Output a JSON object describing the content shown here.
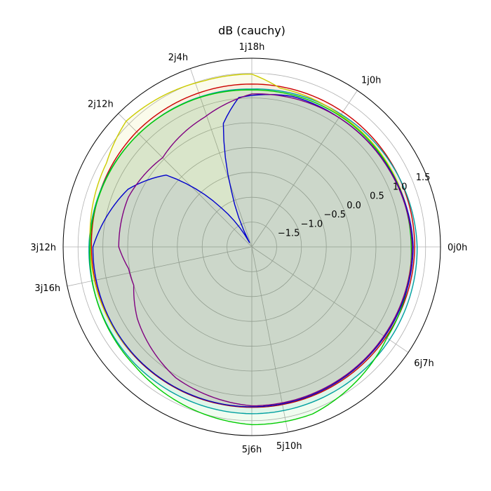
{
  "chart_data": {
    "type": "polar-line",
    "title": "dB (cauchy)",
    "theta_ticks": [
      {
        "label": "0j0h",
        "deg": 0
      },
      {
        "label": "1j0h",
        "deg": 56
      },
      {
        "label": "1j18h",
        "deg": 90
      },
      {
        "label": "2j4h",
        "deg": 109
      },
      {
        "label": "2j12h",
        "deg": 135
      },
      {
        "label": "3j12h",
        "deg": 180
      },
      {
        "label": "3j16h",
        "deg": 192
      },
      {
        "label": "5j6h",
        "deg": 270
      },
      {
        "label": "5j10h",
        "deg": 281
      },
      {
        "label": "6j7h",
        "deg": 326
      }
    ],
    "r_ticks": [
      "−1.5",
      "−1.0",
      "−0.5",
      "0.0",
      "0.5",
      "1.0",
      "1.5"
    ],
    "r_tick_values": [
      -1.5,
      -1.0,
      -0.5,
      0.0,
      0.5,
      1.0,
      1.5
    ],
    "r_range": [
      -2.0,
      1.8
    ],
    "r_label_angle_deg": 22,
    "grid": true,
    "series": [
      {
        "color": "#cc0000",
        "fill": true,
        "fill_opacity": 0.06,
        "points": [
          [
            0,
            1.28
          ],
          [
            56,
            1.28
          ],
          [
            80,
            1.28
          ],
          [
            90,
            1.28
          ],
          [
            100,
            1.28
          ],
          [
            135,
            1.28
          ],
          [
            180,
            1.23
          ],
          [
            225,
            1.23
          ],
          [
            270,
            1.23
          ],
          [
            315,
            1.25
          ],
          [
            360,
            1.28
          ]
        ]
      },
      {
        "color": "#00a0a0",
        "fill": true,
        "fill_opacity": 0.07,
        "points": [
          [
            0,
            1.33
          ],
          [
            56,
            1.22
          ],
          [
            90,
            1.18
          ],
          [
            135,
            1.22
          ],
          [
            180,
            1.28
          ],
          [
            225,
            1.33
          ],
          [
            270,
            1.36
          ],
          [
            315,
            1.35
          ],
          [
            360,
            1.33
          ]
        ]
      },
      {
        "color": "#cccc00",
        "fill": true,
        "fill_opacity": 0.08,
        "points": [
          [
            0,
            1.22
          ],
          [
            56,
            1.2
          ],
          [
            80,
            1.25
          ],
          [
            90,
            1.48
          ],
          [
            106,
            1.48
          ],
          [
            135,
            1.58
          ],
          [
            150,
            1.38
          ],
          [
            180,
            1.25
          ],
          [
            225,
            1.22
          ],
          [
            270,
            1.22
          ],
          [
            315,
            1.22
          ],
          [
            360,
            1.22
          ]
        ]
      },
      {
        "color": "#00cc00",
        "fill": true,
        "fill_opacity": 0.06,
        "points": [
          [
            0,
            1.21
          ],
          [
            56,
            1.18
          ],
          [
            90,
            1.16
          ],
          [
            135,
            1.22
          ],
          [
            180,
            1.26
          ],
          [
            225,
            1.36
          ],
          [
            270,
            1.58
          ],
          [
            290,
            1.58
          ],
          [
            326,
            1.28
          ],
          [
            360,
            1.21
          ]
        ]
      },
      {
        "color": "#0000cc",
        "fill": true,
        "fill_opacity": 0.06,
        "points": [
          [
            0,
            1.25
          ],
          [
            30,
            1.18
          ],
          [
            56,
            1.14
          ],
          [
            75,
            1.14
          ],
          [
            95,
            1.02
          ],
          [
            103,
            0.55
          ],
          [
            110,
            -0.8
          ],
          [
            118,
            -1.9
          ],
          [
            128,
            -1.0
          ],
          [
            140,
            0.25
          ],
          [
            155,
            0.75
          ],
          [
            180,
            1.2
          ],
          [
            225,
            1.22
          ],
          [
            270,
            1.22
          ],
          [
            315,
            1.22
          ],
          [
            360,
            1.25
          ]
        ]
      },
      {
        "color": "#800080",
        "fill": false,
        "fill_opacity": 0,
        "points": [
          [
            0,
            1.23
          ],
          [
            30,
            1.17
          ],
          [
            56,
            1.14
          ],
          [
            90,
            1.08
          ],
          [
            110,
            0.78
          ],
          [
            135,
            0.54
          ],
          [
            158,
            0.68
          ],
          [
            180,
            0.68
          ],
          [
            190,
            0.52
          ],
          [
            198,
            0.5
          ],
          [
            212,
            0.72
          ],
          [
            240,
            1.05
          ],
          [
            270,
            1.2
          ],
          [
            300,
            1.2
          ],
          [
            330,
            1.21
          ],
          [
            360,
            1.23
          ]
        ]
      }
    ]
  }
}
